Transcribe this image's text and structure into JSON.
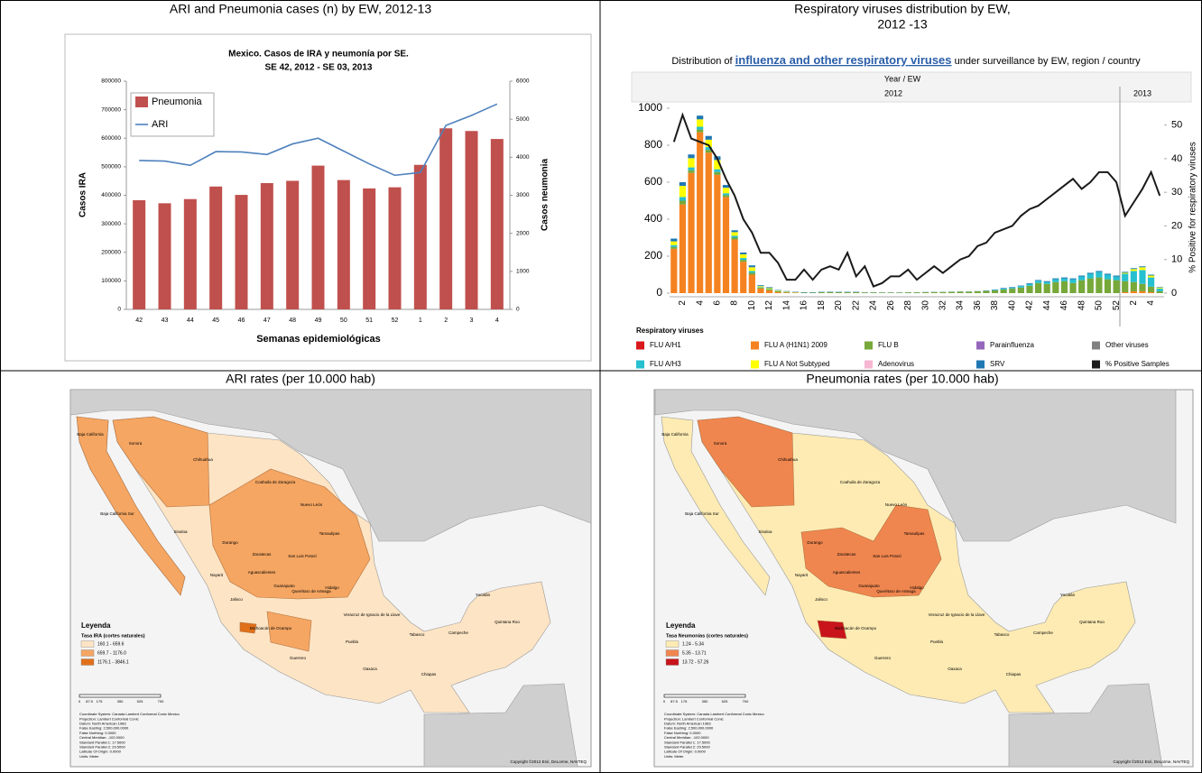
{
  "headings": [
    [
      "ARI and Pneumonia cases (n) by EW, 2012-13"
    ],
    [
      "Respiratory viruses distribution by EW,",
      "2012 -13"
    ],
    [
      "ARI rates (per 10.000 hab)"
    ],
    [
      "Pneumonia rates (per 10.000 hab)"
    ]
  ],
  "chart_data": [
    {
      "type": "combo",
      "title": "Mexico. Casos de IRA y neumonía por SE.",
      "subtitle": "SE 42, 2012 - SE 03, 2013",
      "x_label": "Semanas epidemiológicas",
      "y_label": "Casos IRA",
      "y2_label": "Casos neumonia",
      "categories": [
        "42",
        "43",
        "44",
        "45",
        "46",
        "47",
        "48",
        "49",
        "50",
        "51",
        "52",
        "1",
        "2",
        "3",
        "4"
      ],
      "ylim": [
        0,
        800000
      ],
      "yticks": [
        0,
        100000,
        200000,
        300000,
        400000,
        500000,
        600000,
        700000,
        800000
      ],
      "y2lim": [
        0,
        6000
      ],
      "y2ticks": [
        0,
        1000,
        2000,
        3000,
        4000,
        5000,
        6000
      ],
      "series": [
        {
          "name": "Pneumonia",
          "type": "bar",
          "axis": "y2",
          "color": "#c0504d",
          "values": [
            2870,
            2790,
            2900,
            3230,
            3010,
            3320,
            3380,
            3780,
            3400,
            3180,
            3210,
            3800,
            4760,
            4690,
            4480
          ]
        },
        {
          "name": "ARI",
          "type": "line",
          "color": "#4f81bd",
          "values": [
            522000,
            520000,
            505000,
            553000,
            552000,
            543000,
            580000,
            600000,
            555000,
            510000,
            470000,
            480000,
            645000,
            680000,
            720000
          ]
        }
      ]
    },
    {
      "type": "stacked-bar-line",
      "banner": [
        "Distribution of",
        "influenza and other respiratory viruses",
        "under surveillance by EW, region / country"
      ],
      "x_header": "Year / EW",
      "years": [
        "2012",
        "2013"
      ],
      "y2_label": "% Positive for respiratory viruses",
      "legend_title": "Respiratory viruses",
      "categories": [
        null,
        "2",
        null,
        "4",
        null,
        "6",
        null,
        "8",
        null,
        "10",
        null,
        "12",
        null,
        "14",
        null,
        "16",
        null,
        "18",
        null,
        "20",
        null,
        "22",
        null,
        "24",
        null,
        "26",
        null,
        "28",
        null,
        "30",
        null,
        "32",
        null,
        "34",
        null,
        "36",
        null,
        "38",
        null,
        "40",
        null,
        "42",
        null,
        "44",
        null,
        "46",
        null,
        "48",
        null,
        "50",
        null,
        "52",
        null,
        "2",
        null,
        "4",
        null
      ],
      "ylim": [
        0,
        1000
      ],
      "yticks": [
        0,
        200,
        400,
        600,
        800,
        1000
      ],
      "y2lim": [
        0,
        55
      ],
      "y2ticks": [
        0,
        10,
        20,
        30,
        40,
        50
      ],
      "series": [
        {
          "name": "FLU A/H1",
          "type": "bar",
          "color": "#d7191c",
          "values": [
            0,
            0,
            0,
            0,
            0,
            0,
            0,
            0,
            0,
            0,
            0,
            0,
            0,
            0,
            0,
            0,
            0,
            0,
            0,
            0,
            0,
            0,
            0,
            0,
            0,
            0,
            0,
            0,
            0,
            0,
            0,
            0,
            0,
            0,
            0,
            0,
            0,
            0,
            0,
            0,
            0,
            0,
            0,
            0,
            0,
            0,
            0,
            0,
            0,
            0,
            0,
            0,
            0,
            0,
            0,
            0,
            0
          ]
        },
        {
          "name": "FLU A (H1N1) 2009",
          "type": "bar",
          "color": "#f58220",
          "values": [
            240,
            480,
            650,
            870,
            760,
            640,
            520,
            290,
            170,
            100,
            25,
            15,
            5,
            3,
            2,
            0,
            0,
            0,
            0,
            0,
            0,
            0,
            0,
            0,
            0,
            0,
            0,
            0,
            0,
            0,
            0,
            0,
            0,
            0,
            0,
            0,
            0,
            0,
            0,
            0,
            0,
            0,
            0,
            0,
            0,
            0,
            0,
            0,
            0,
            0,
            0,
            0,
            5,
            10,
            10,
            5,
            0
          ]
        },
        {
          "name": "FLU B",
          "type": "bar",
          "color": "#77a83a",
          "values": [
            10,
            20,
            15,
            15,
            15,
            15,
            10,
            10,
            10,
            10,
            5,
            5,
            5,
            3,
            2,
            3,
            3,
            5,
            6,
            5,
            5,
            5,
            4,
            4,
            3,
            3,
            3,
            4,
            4,
            5,
            6,
            6,
            7,
            8,
            8,
            10,
            12,
            15,
            20,
            25,
            30,
            40,
            55,
            50,
            60,
            65,
            55,
            70,
            80,
            85,
            75,
            70,
            60,
            50,
            40,
            30,
            10
          ]
        },
        {
          "name": "Parainfluenza",
          "type": "bar",
          "color": "#9467bd",
          "values": [
            0,
            0,
            0,
            0,
            0,
            0,
            0,
            0,
            0,
            0,
            0,
            0,
            0,
            0,
            0,
            0,
            0,
            0,
            0,
            0,
            0,
            0,
            0,
            0,
            0,
            0,
            0,
            0,
            0,
            0,
            0,
            0,
            0,
            0,
            0,
            0,
            0,
            0,
            0,
            0,
            0,
            0,
            0,
            0,
            0,
            0,
            0,
            0,
            0,
            0,
            0,
            0,
            0,
            0,
            0,
            0,
            0
          ]
        },
        {
          "name": "Other viruses",
          "type": "bar",
          "color": "#808080",
          "values": [
            0,
            0,
            0,
            0,
            0,
            0,
            0,
            0,
            0,
            0,
            0,
            0,
            0,
            0,
            0,
            0,
            0,
            0,
            0,
            0,
            0,
            0,
            0,
            0,
            0,
            0,
            0,
            0,
            0,
            0,
            0,
            0,
            0,
            0,
            0,
            0,
            0,
            0,
            0,
            0,
            0,
            0,
            0,
            0,
            0,
            0,
            0,
            0,
            0,
            0,
            0,
            0,
            0,
            0,
            0,
            0,
            0
          ]
        },
        {
          "name": "FLU A/H3",
          "type": "bar",
          "color": "#26c0d0",
          "values": [
            10,
            20,
            15,
            15,
            15,
            15,
            10,
            10,
            10,
            10,
            3,
            2,
            1,
            1,
            0,
            0,
            0,
            0,
            0,
            0,
            0,
            0,
            0,
            0,
            0,
            0,
            0,
            0,
            0,
            0,
            0,
            0,
            0,
            0,
            0,
            0,
            0,
            3,
            5,
            5,
            8,
            10,
            12,
            10,
            15,
            15,
            20,
            20,
            25,
            30,
            25,
            20,
            40,
            60,
            75,
            50,
            15
          ]
        },
        {
          "name": "FLU A Not Subtyped",
          "type": "bar",
          "color": "#ffff00",
          "values": [
            20,
            60,
            50,
            40,
            40,
            50,
            30,
            20,
            20,
            20,
            5,
            5,
            3,
            2,
            1,
            0,
            0,
            0,
            0,
            0,
            0,
            0,
            0,
            0,
            0,
            0,
            0,
            0,
            0,
            0,
            0,
            0,
            0,
            0,
            0,
            0,
            0,
            0,
            0,
            0,
            0,
            0,
            0,
            0,
            0,
            0,
            0,
            0,
            0,
            0,
            0,
            0,
            5,
            10,
            15,
            10,
            5
          ]
        },
        {
          "name": "Adenovirus",
          "type": "bar",
          "color": "#f7b6d2",
          "values": [
            0,
            0,
            0,
            0,
            0,
            0,
            0,
            0,
            0,
            0,
            0,
            0,
            0,
            0,
            0,
            0,
            0,
            0,
            0,
            0,
            0,
            0,
            0,
            0,
            0,
            0,
            0,
            0,
            0,
            0,
            0,
            0,
            0,
            0,
            0,
            0,
            0,
            0,
            0,
            0,
            0,
            0,
            0,
            0,
            0,
            0,
            0,
            0,
            0,
            0,
            0,
            0,
            0,
            0,
            0,
            0,
            0
          ]
        },
        {
          "name": "SRV",
          "type": "bar",
          "color": "#1f77b4",
          "values": [
            15,
            20,
            20,
            20,
            20,
            20,
            15,
            10,
            10,
            10,
            5,
            5,
            3,
            2,
            2,
            2,
            2,
            2,
            2,
            2,
            2,
            2,
            1,
            1,
            1,
            1,
            1,
            1,
            1,
            1,
            1,
            1,
            1,
            1,
            1,
            1,
            2,
            2,
            3,
            3,
            3,
            4,
            4,
            5,
            5,
            5,
            5,
            5,
            5,
            5,
            5,
            5,
            5,
            5,
            5,
            5,
            3
          ]
        },
        {
          "name": "% Positive Samples",
          "type": "line",
          "axis": "y2",
          "color": "#1a1a1a",
          "values": [
            45,
            53,
            46,
            45,
            44,
            40,
            34,
            29,
            22,
            18,
            12,
            12,
            9,
            4,
            4,
            7,
            4,
            7,
            8,
            7,
            12,
            5,
            8,
            2,
            3,
            5,
            5,
            7,
            4,
            6,
            8,
            6,
            8,
            10,
            11,
            14,
            15,
            18,
            19,
            20,
            23,
            25,
            26,
            28,
            30,
            32,
            34,
            31,
            33,
            36,
            36,
            33,
            23,
            27,
            31,
            36,
            29
          ]
        }
      ]
    }
  ],
  "maps": [
    {
      "legend_title": "Leyenda",
      "legend_subtitle": "Tasa IRA (cortes naturales)",
      "classes": [
        {
          "label": "160.1 - 659.6",
          "color": "#fde4c4"
        },
        {
          "label": "659.7 - 1176.0",
          "color": "#f5a662"
        },
        {
          "label": "1176.1 - 3846.1",
          "color": "#e0701a"
        }
      ]
    },
    {
      "legend_title": "Leyenda",
      "legend_subtitle": "Tasa Neumonías (cortes naturales)",
      "classes": [
        {
          "label": "1.24 - 5.34",
          "color": "#fdebb3"
        },
        {
          "label": "5.35 - 13.71",
          "color": "#f0864f"
        },
        {
          "label": "13.72 - 57.26",
          "color": "#c8141a"
        }
      ]
    }
  ],
  "map_labels": [
    "Baja California",
    "Sonora",
    "Chihuahua",
    "Coahuila de Zaragoza",
    "Nuevo León",
    "Tamaulipas",
    "Baja California Sur",
    "Sinaloa",
    "Durango",
    "Zacatecas",
    "San Luis Potosí",
    "Nayarit",
    "Aguascalientes",
    "Jalisco",
    "Guanajuato",
    "Querétaro de Arteaga",
    "Hidalgo",
    "Michoacán de Ocampo",
    "Guerrero",
    "Oaxaca",
    "Puebla",
    "Veracruz de Ignacio de la Llave",
    "Tabasco",
    "Chiapas",
    "Campeche",
    "Yucatán",
    "Quintana Roo"
  ],
  "scale_labels": [
    "0",
    "87.5",
    "175",
    "350",
    "525",
    "700"
  ],
  "map_notes": [
    "Coordinate System: Canada Lambert Conformal Conic Mexico",
    "Projection: Lambert Conformal Conic",
    "Datum: North American 1983",
    "False Easting: 2,500,000.0000",
    "False Northing: 0.0000",
    "Central Meridian: -102.0000",
    "Standard Parallel 1: 17.5000",
    "Standard Parallel 2: 29.5000",
    "Latitude Of Origin: 0.0000",
    "Units: Meter"
  ],
  "copyright": "Copyright ©2012 Esri, DeLorme, NAVTEQ"
}
